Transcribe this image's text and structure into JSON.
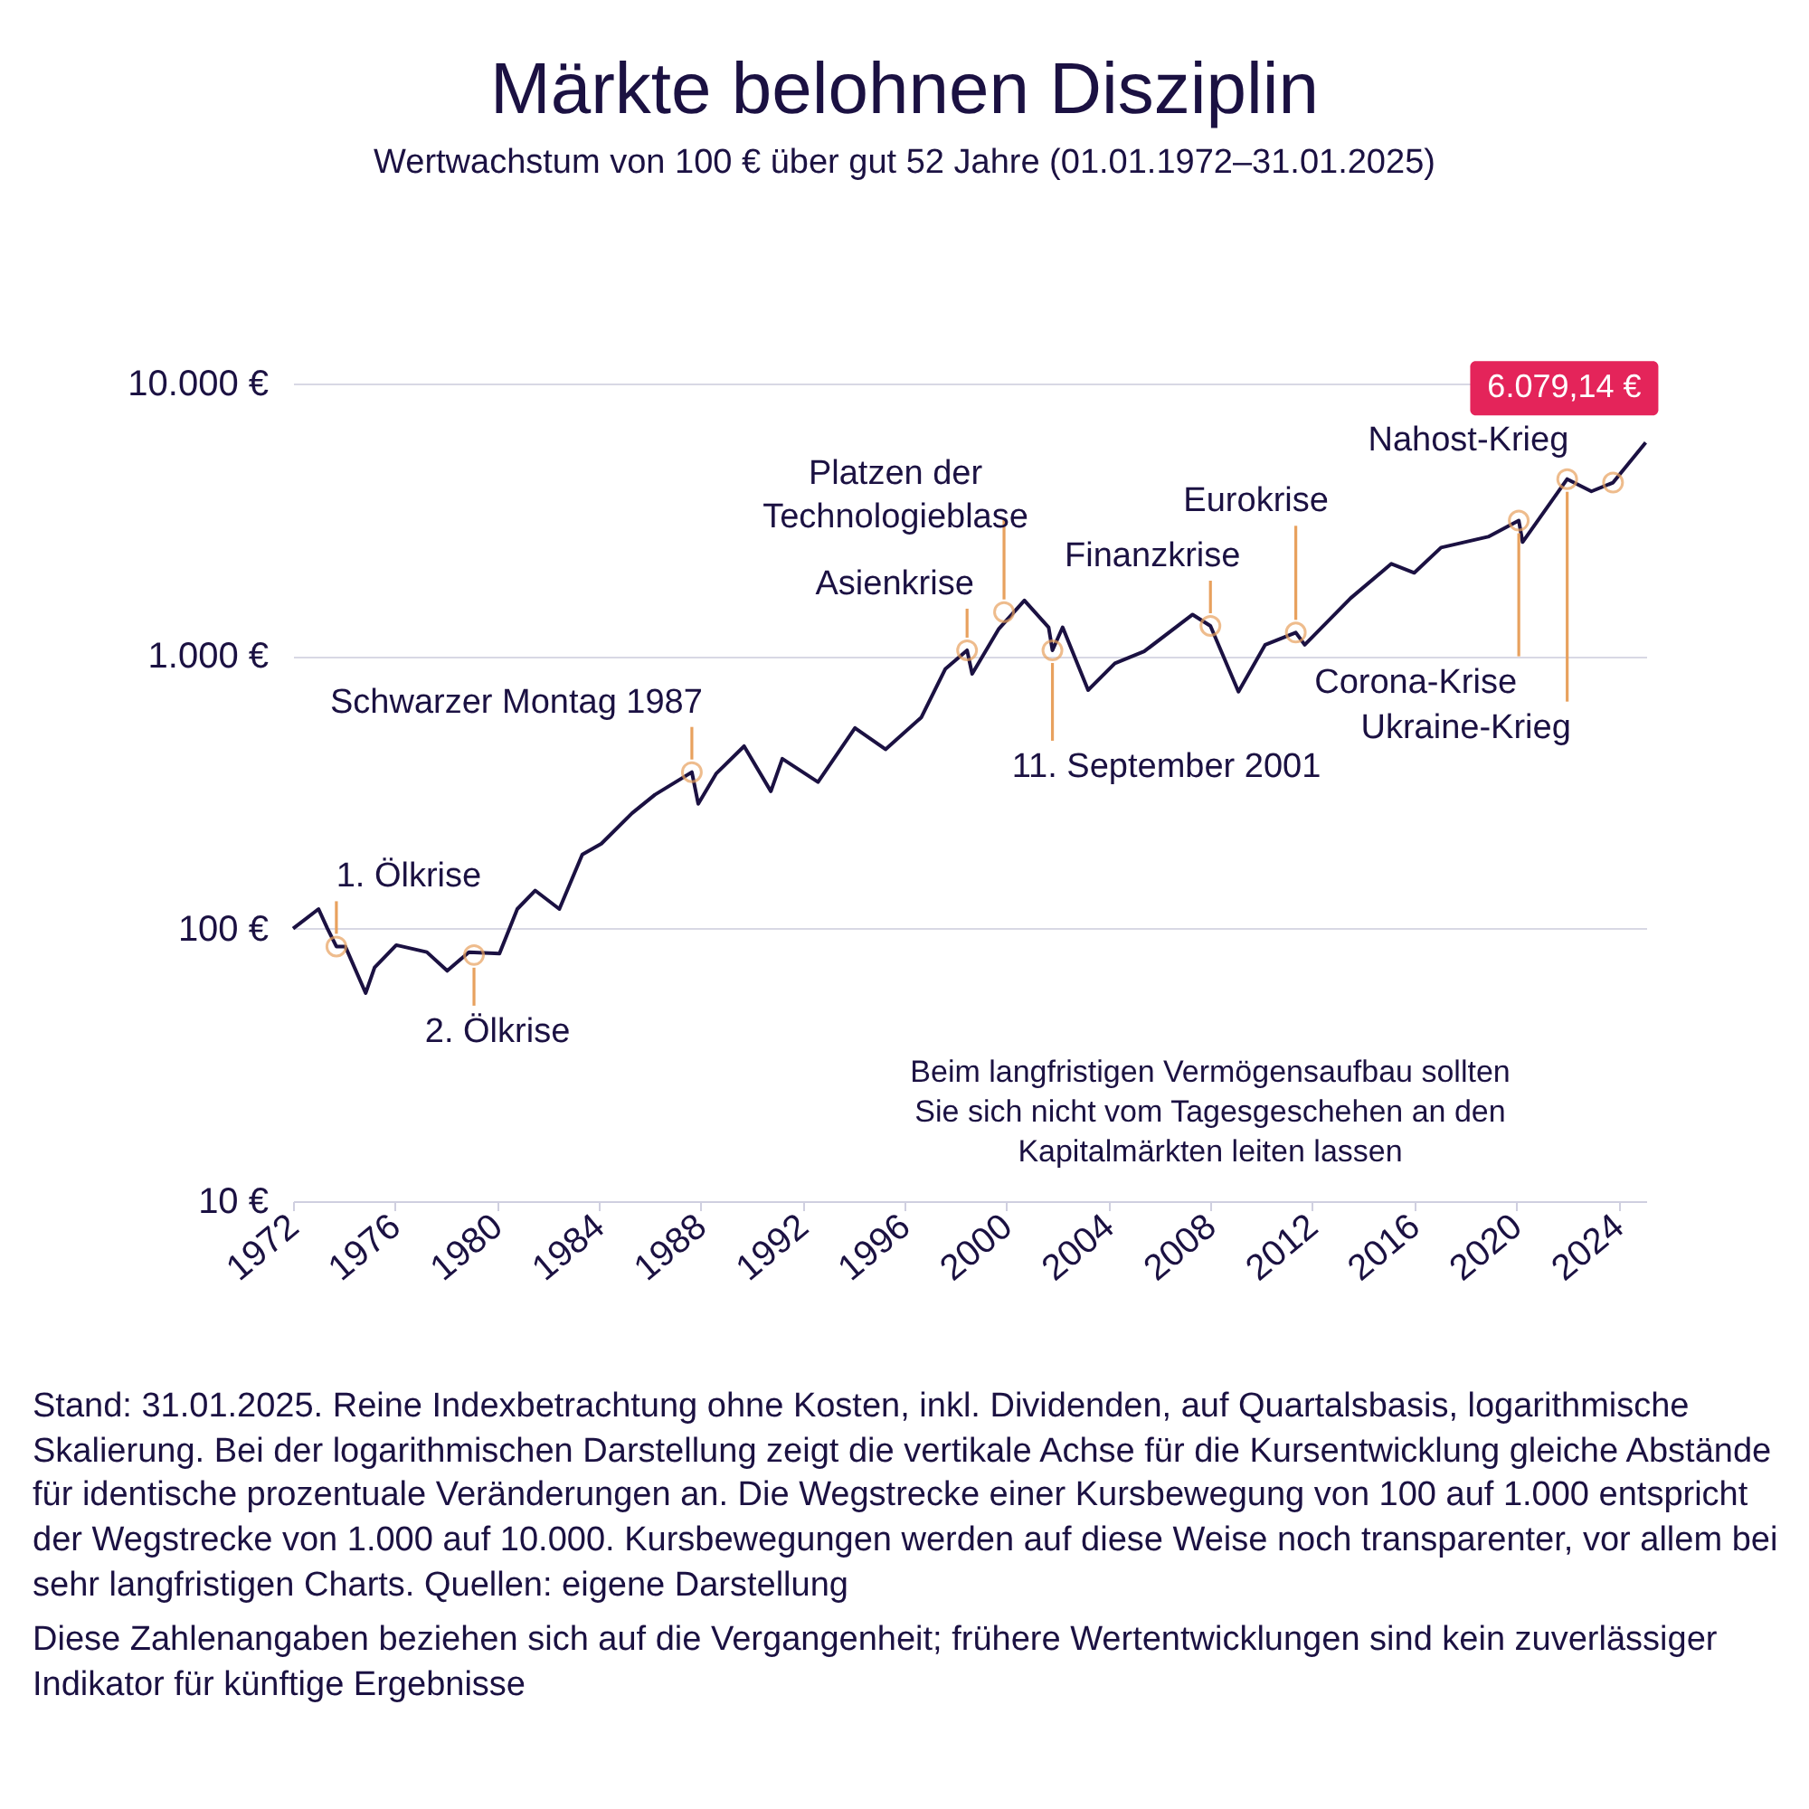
{
  "chart_data": {
    "type": "line",
    "title": "Märkte belohnen Disziplin",
    "subtitle": "Wertwachstum von 100 € über gut 52 Jahre (01.01.1972–31.01.2025)",
    "x": [
      1972.0,
      1973.0,
      1973.35,
      1973.7,
      1974.05,
      1974.85,
      1975.2,
      1976.05,
      1977.25,
      1978.05,
      1978.9,
      1980.1,
      1980.8,
      1981.5,
      1982.45,
      1983.35,
      1984.1,
      1985.3,
      1986.2,
      1987.65,
      1987.9,
      1988.6,
      1989.7,
      1990.75,
      1991.2,
      1992.6,
      1994.05,
      1995.25,
      1996.65,
      1997.6,
      1998.45,
      1998.65,
      1999.7,
      2000.7,
      2001.65,
      2001.8,
      2002.2,
      2003.2,
      2004.25,
      2005.4,
      2007.3,
      2008.0,
      2009.1,
      2010.15,
      2011.35,
      2011.7,
      2013.5,
      2015.1,
      2016.0,
      2017.05,
      2018.9,
      2020.1,
      2020.25,
      2022.0,
      2022.95,
      2023.8,
      2025.08
    ],
    "values": [
      100,
      118,
      100,
      86,
      86,
      58,
      72,
      87,
      82,
      70,
      82,
      81,
      118,
      138,
      118,
      187,
      205,
      265,
      310,
      375,
      287,
      370,
      467,
      319,
      420,
      345,
      545,
      455,
      595,
      898,
      1050,
      860,
      1260,
      1600,
      1275,
      1050,
      1275,
      750,
      940,
      1040,
      1420,
      1290,
      740,
      1100,
      1220,
      1100,
      1630,
      2180,
      2020,
      2500,
      2740,
      3140,
      2620,
      4460,
      4020,
      4330,
      6079.14
    ],
    "value_labels": [
      null,
      null,
      null,
      null,
      null,
      null,
      null,
      null,
      null,
      null,
      null,
      null,
      null,
      null,
      null,
      null,
      null,
      null,
      null,
      null,
      null,
      null,
      null,
      null,
      null,
      null,
      null,
      null,
      null,
      null,
      null,
      null,
      null,
      null,
      null,
      null,
      null,
      null,
      null,
      null,
      null,
      null,
      null,
      null,
      null,
      null,
      null,
      null,
      null,
      null,
      null,
      null,
      null,
      null,
      null,
      null,
      "6.079,14 €"
    ],
    "color": "#1b1142",
    "xlim": [
      1972,
      2025.1
    ],
    "xticks": [
      1972,
      1976,
      1980,
      1984,
      1988,
      1992,
      1996,
      2000,
      2004,
      2008,
      2012,
      2016,
      2020,
      2024
    ],
    "ylim": [
      10,
      10000
    ],
    "yticks": [
      {
        "value": 10,
        "label": "10 €"
      },
      {
        "value": 100,
        "label": "100 €"
      },
      {
        "value": 1000,
        "label": "1.000 €"
      },
      {
        "value": 10000,
        "label": "10.000 €"
      }
    ],
    "log": "y",
    "grid": "y",
    "annotations": [
      {
        "text": "1. Ölkrise",
        "x": 1973.7,
        "y": 86
      },
      {
        "text": "2. Ölkrise",
        "x": 1979.1,
        "y": 80
      },
      {
        "text": "Schwarzer Montag 1987",
        "x": 1987.65,
        "y": 375
      },
      {
        "text": "Asienkrise",
        "x": 1998.45,
        "y": 1050
      },
      {
        "text": "Platzen der\nTechnologieblase",
        "x": 1999.9,
        "y": 1450
      },
      {
        "text": "11. September 2001",
        "x": 2001.8,
        "y": 1050
      },
      {
        "text": "Finanzkrise",
        "x": 2008.0,
        "y": 1290
      },
      {
        "text": "Eurokrise",
        "x": 2011.35,
        "y": 1220
      },
      {
        "text": "Corona-Krise",
        "x": 2020.1,
        "y": 3140
      },
      {
        "text": "Ukraine-Krieg",
        "x": 2022.0,
        "y": 4460
      },
      {
        "text": "Nahost-Krieg",
        "x": 2023.8,
        "y": 4330
      },
      "Beim langfristigen Vermögensaufbau sollten\nSie sich nicht vom Tagesgeschehen an den\nKapitalmärkten leiten lassen",
      "Stand: 31.01.2025. Reine Indexbetrachtung ohne Kosten, inkl. Dividenden, auf Quartalsbasis, logarithmische Skalierung. Bei der logarithmischen Darstellung zeigt die vertikale Achse für die Kursentwicklung gleiche Abstände für identische prozentuale Veränderungen an. Die Wegstrecke einer Kursbewegung von 100 auf 1.000 entspricht der Wegstrecke von 1.000 auf 10.000. Kursbewegungen werden auf diese Weise noch transparenter, vor allem bei sehr langfristigen Charts. Quellen: eigene Darstellung",
      "Diese Zahlenangaben beziehen sich auf die Vergangenheit; frühere Wertentwicklungen sind kein zuverlässiger Indikator für künftige Ergebnisse"
    ]
  }
}
